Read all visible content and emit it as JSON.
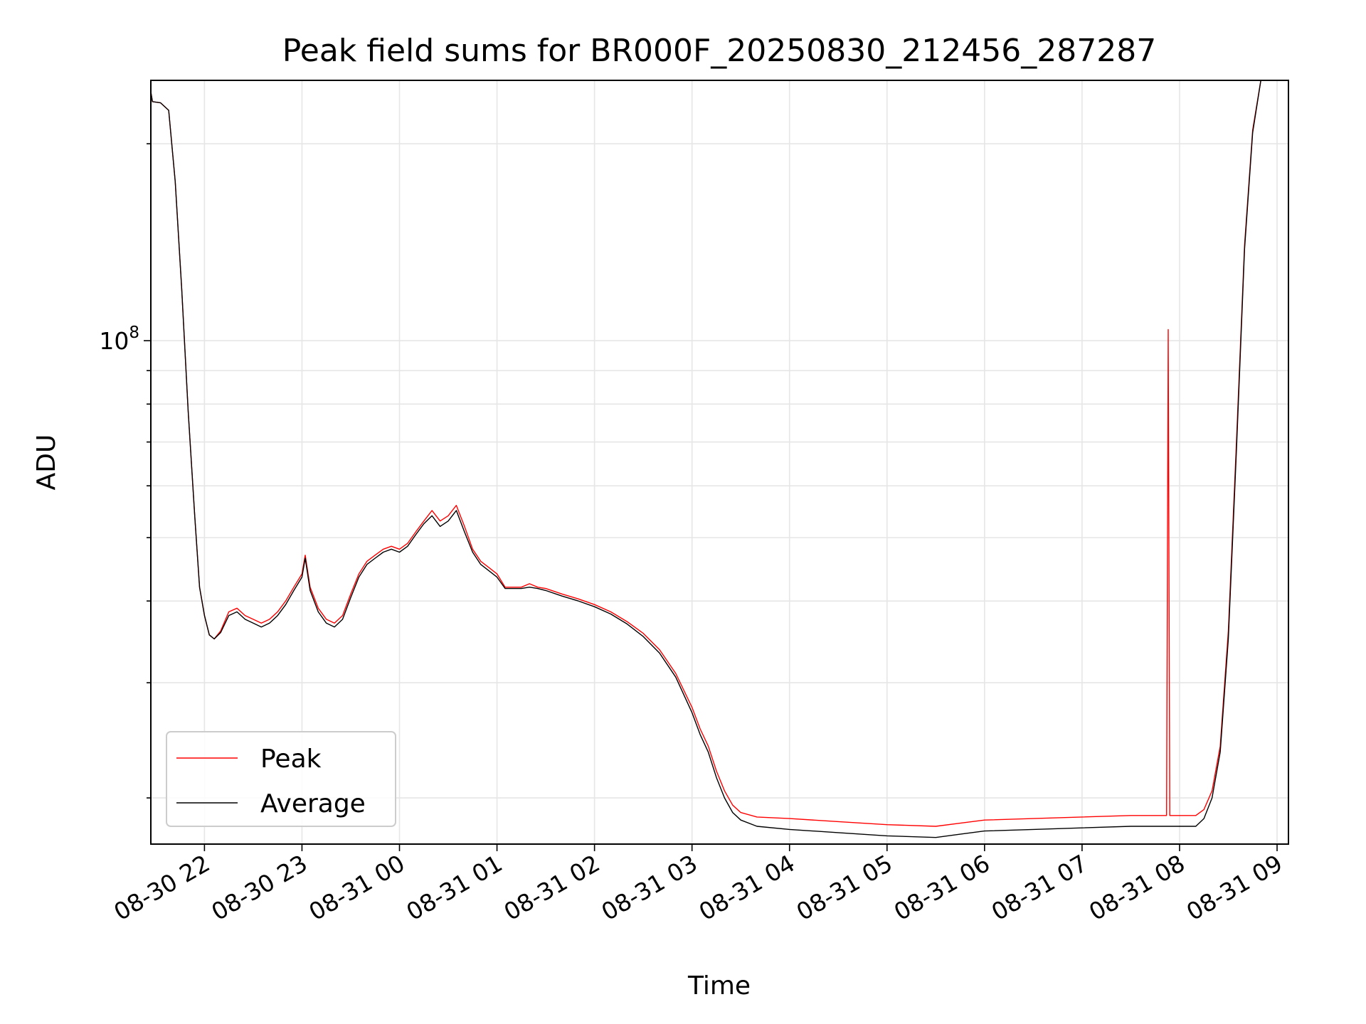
{
  "chart_data": {
    "type": "line",
    "title": "Peak field sums for BR000F_20250830_212456_287287",
    "xlabel": "Time",
    "ylabel": "ADU",
    "y_scale": "log",
    "y_tick": {
      "value": 100000000,
      "label_base": "10",
      "label_exp": "8"
    },
    "y_minor_ticks": [
      20000000,
      30000000,
      40000000,
      50000000,
      60000000,
      70000000,
      80000000,
      90000000,
      200000000
    ],
    "ylim": [
      17000000,
      250000000
    ],
    "xlim": [
      "2025-08-30 21:27",
      "2025-08-31 09:07"
    ],
    "x_ticks": [
      {
        "t": "2025-08-30 22:00",
        "label": "08-30 22"
      },
      {
        "t": "2025-08-30 23:00",
        "label": "08-30 23"
      },
      {
        "t": "2025-08-31 00:00",
        "label": "08-31 00"
      },
      {
        "t": "2025-08-31 01:00",
        "label": "08-31 01"
      },
      {
        "t": "2025-08-31 02:00",
        "label": "08-31 02"
      },
      {
        "t": "2025-08-31 03:00",
        "label": "08-31 03"
      },
      {
        "t": "2025-08-31 04:00",
        "label": "08-31 04"
      },
      {
        "t": "2025-08-31 05:00",
        "label": "08-31 05"
      },
      {
        "t": "2025-08-31 06:00",
        "label": "08-31 06"
      },
      {
        "t": "2025-08-31 07:00",
        "label": "08-31 07"
      },
      {
        "t": "2025-08-31 08:00",
        "label": "08-31 08"
      },
      {
        "t": "2025-08-31 09:00",
        "label": "08-31 09"
      }
    ],
    "grid": true,
    "legend": {
      "position": "lower-left",
      "entries": [
        "Peak",
        "Average"
      ]
    },
    "series": [
      {
        "name": "Peak",
        "color": "#ff0000",
        "points": [
          [
            "2025-08-30 21:27",
            240000000
          ],
          [
            "2025-08-30 21:28",
            232000000
          ],
          [
            "2025-08-30 21:33",
            231000000
          ],
          [
            "2025-08-30 21:38",
            225000000
          ],
          [
            "2025-08-30 21:42",
            175000000
          ],
          [
            "2025-08-30 21:46",
            120000000
          ],
          [
            "2025-08-30 21:50",
            78000000
          ],
          [
            "2025-08-30 21:54",
            54000000
          ],
          [
            "2025-08-30 21:57",
            42000000
          ],
          [
            "2025-08-30 22:00",
            38000000
          ],
          [
            "2025-08-30 22:03",
            35500000
          ],
          [
            "2025-08-30 22:06",
            35000000
          ],
          [
            "2025-08-30 22:10",
            36000000
          ],
          [
            "2025-08-30 22:15",
            38500000
          ],
          [
            "2025-08-30 22:20",
            39000000
          ],
          [
            "2025-08-30 22:25",
            38000000
          ],
          [
            "2025-08-30 22:30",
            37500000
          ],
          [
            "2025-08-30 22:35",
            37000000
          ],
          [
            "2025-08-30 22:40",
            37500000
          ],
          [
            "2025-08-30 22:45",
            38500000
          ],
          [
            "2025-08-30 22:50",
            40000000
          ],
          [
            "2025-08-30 22:55",
            42000000
          ],
          [
            "2025-08-30 23:00",
            44000000
          ],
          [
            "2025-08-30 23:02",
            47000000
          ],
          [
            "2025-08-30 23:05",
            42000000
          ],
          [
            "2025-08-30 23:10",
            39000000
          ],
          [
            "2025-08-30 23:15",
            37500000
          ],
          [
            "2025-08-30 23:20",
            37000000
          ],
          [
            "2025-08-30 23:25",
            38000000
          ],
          [
            "2025-08-30 23:30",
            41000000
          ],
          [
            "2025-08-30 23:35",
            44000000
          ],
          [
            "2025-08-30 23:40",
            46000000
          ],
          [
            "2025-08-30 23:45",
            47000000
          ],
          [
            "2025-08-30 23:50",
            48000000
          ],
          [
            "2025-08-30 23:55",
            48500000
          ],
          [
            "2025-08-31 00:00",
            48000000
          ],
          [
            "2025-08-31 00:05",
            49000000
          ],
          [
            "2025-08-31 00:10",
            51000000
          ],
          [
            "2025-08-31 00:15",
            53000000
          ],
          [
            "2025-08-31 00:20",
            55000000
          ],
          [
            "2025-08-31 00:25",
            53000000
          ],
          [
            "2025-08-31 00:30",
            54000000
          ],
          [
            "2025-08-31 00:35",
            56000000
          ],
          [
            "2025-08-31 00:40",
            52000000
          ],
          [
            "2025-08-31 00:45",
            48000000
          ],
          [
            "2025-08-31 00:50",
            46000000
          ],
          [
            "2025-08-31 00:55",
            45000000
          ],
          [
            "2025-08-31 01:00",
            44000000
          ],
          [
            "2025-08-31 01:05",
            42000000
          ],
          [
            "2025-08-31 01:10",
            42000000
          ],
          [
            "2025-08-31 01:15",
            42000000
          ],
          [
            "2025-08-31 01:20",
            42500000
          ],
          [
            "2025-08-31 01:25",
            42000000
          ],
          [
            "2025-08-31 01:30",
            41800000
          ],
          [
            "2025-08-31 01:40",
            41000000
          ],
          [
            "2025-08-31 01:50",
            40300000
          ],
          [
            "2025-08-31 02:00",
            39500000
          ],
          [
            "2025-08-31 02:10",
            38500000
          ],
          [
            "2025-08-31 02:20",
            37200000
          ],
          [
            "2025-08-31 02:30",
            35700000
          ],
          [
            "2025-08-31 02:40",
            33700000
          ],
          [
            "2025-08-31 02:50",
            31000000
          ],
          [
            "2025-08-31 03:00",
            27500000
          ],
          [
            "2025-08-31 03:05",
            25500000
          ],
          [
            "2025-08-31 03:10",
            24000000
          ],
          [
            "2025-08-31 03:15",
            22000000
          ],
          [
            "2025-08-31 03:20",
            20500000
          ],
          [
            "2025-08-31 03:25",
            19500000
          ],
          [
            "2025-08-31 03:30",
            19000000
          ],
          [
            "2025-08-31 03:40",
            18700000
          ],
          [
            "2025-08-31 04:00",
            18600000
          ],
          [
            "2025-08-31 04:30",
            18400000
          ],
          [
            "2025-08-31 05:00",
            18200000
          ],
          [
            "2025-08-31 05:30",
            18100000
          ],
          [
            "2025-08-31 05:45",
            18300000
          ],
          [
            "2025-08-31 06:00",
            18500000
          ],
          [
            "2025-08-31 06:30",
            18600000
          ],
          [
            "2025-08-31 07:00",
            18700000
          ],
          [
            "2025-08-31 07:30",
            18800000
          ],
          [
            "2025-08-31 07:52",
            18800000
          ],
          [
            "2025-08-31 07:53",
            104000000
          ],
          [
            "2025-08-31 07:54",
            18800000
          ],
          [
            "2025-08-31 08:10",
            18800000
          ],
          [
            "2025-08-31 08:15",
            19200000
          ],
          [
            "2025-08-31 08:20",
            20500000
          ],
          [
            "2025-08-31 08:25",
            24000000
          ],
          [
            "2025-08-31 08:30",
            36000000
          ],
          [
            "2025-08-31 08:35",
            70000000
          ],
          [
            "2025-08-31 08:40",
            140000000
          ],
          [
            "2025-08-31 08:45",
            210000000
          ],
          [
            "2025-08-31 08:50",
            250000000
          ]
        ]
      },
      {
        "name": "Average",
        "color": "#000000",
        "points": [
          [
            "2025-08-30 21:27",
            240000000
          ],
          [
            "2025-08-30 21:28",
            232000000
          ],
          [
            "2025-08-30 21:33",
            231000000
          ],
          [
            "2025-08-30 21:38",
            225000000
          ],
          [
            "2025-08-30 21:42",
            175000000
          ],
          [
            "2025-08-30 21:46",
            120000000
          ],
          [
            "2025-08-30 21:50",
            78000000
          ],
          [
            "2025-08-30 21:54",
            54000000
          ],
          [
            "2025-08-30 21:57",
            42000000
          ],
          [
            "2025-08-30 22:00",
            38000000
          ],
          [
            "2025-08-30 22:03",
            35500000
          ],
          [
            "2025-08-30 22:06",
            35000000
          ],
          [
            "2025-08-30 22:10",
            35800000
          ],
          [
            "2025-08-30 22:15",
            38000000
          ],
          [
            "2025-08-30 22:20",
            38500000
          ],
          [
            "2025-08-30 22:25",
            37500000
          ],
          [
            "2025-08-30 22:30",
            37000000
          ],
          [
            "2025-08-30 22:35",
            36500000
          ],
          [
            "2025-08-30 22:40",
            37000000
          ],
          [
            "2025-08-30 22:45",
            38000000
          ],
          [
            "2025-08-30 22:50",
            39500000
          ],
          [
            "2025-08-30 22:55",
            41500000
          ],
          [
            "2025-08-30 23:00",
            43500000
          ],
          [
            "2025-08-30 23:02",
            46500000
          ],
          [
            "2025-08-30 23:05",
            41500000
          ],
          [
            "2025-08-30 23:10",
            38500000
          ],
          [
            "2025-08-30 23:15",
            37000000
          ],
          [
            "2025-08-30 23:20",
            36500000
          ],
          [
            "2025-08-30 23:25",
            37500000
          ],
          [
            "2025-08-30 23:30",
            40500000
          ],
          [
            "2025-08-30 23:35",
            43500000
          ],
          [
            "2025-08-30 23:40",
            45500000
          ],
          [
            "2025-08-30 23:45",
            46500000
          ],
          [
            "2025-08-30 23:50",
            47500000
          ],
          [
            "2025-08-30 23:55",
            48000000
          ],
          [
            "2025-08-31 00:00",
            47500000
          ],
          [
            "2025-08-31 00:05",
            48500000
          ],
          [
            "2025-08-31 00:10",
            50500000
          ],
          [
            "2025-08-31 00:15",
            52500000
          ],
          [
            "2025-08-31 00:20",
            54000000
          ],
          [
            "2025-08-31 00:25",
            52000000
          ],
          [
            "2025-08-31 00:30",
            53000000
          ],
          [
            "2025-08-31 00:35",
            55000000
          ],
          [
            "2025-08-31 00:40",
            51000000
          ],
          [
            "2025-08-31 00:45",
            47500000
          ],
          [
            "2025-08-31 00:50",
            45500000
          ],
          [
            "2025-08-31 00:55",
            44500000
          ],
          [
            "2025-08-31 01:00",
            43500000
          ],
          [
            "2025-08-31 01:05",
            41800000
          ],
          [
            "2025-08-31 01:10",
            41800000
          ],
          [
            "2025-08-31 01:15",
            41800000
          ],
          [
            "2025-08-31 01:20",
            42000000
          ],
          [
            "2025-08-31 01:25",
            41800000
          ],
          [
            "2025-08-31 01:30",
            41500000
          ],
          [
            "2025-08-31 01:40",
            40700000
          ],
          [
            "2025-08-31 01:50",
            40000000
          ],
          [
            "2025-08-31 02:00",
            39200000
          ],
          [
            "2025-08-31 02:10",
            38200000
          ],
          [
            "2025-08-31 02:20",
            36900000
          ],
          [
            "2025-08-31 02:30",
            35300000
          ],
          [
            "2025-08-31 02:40",
            33300000
          ],
          [
            "2025-08-31 02:50",
            30600000
          ],
          [
            "2025-08-31 03:00",
            27000000
          ],
          [
            "2025-08-31 03:05",
            25000000
          ],
          [
            "2025-08-31 03:10",
            23500000
          ],
          [
            "2025-08-31 03:15",
            21500000
          ],
          [
            "2025-08-31 03:20",
            20000000
          ],
          [
            "2025-08-31 03:25",
            19000000
          ],
          [
            "2025-08-31 03:30",
            18500000
          ],
          [
            "2025-08-31 03:40",
            18100000
          ],
          [
            "2025-08-31 04:00",
            17900000
          ],
          [
            "2025-08-31 04:30",
            17700000
          ],
          [
            "2025-08-31 05:00",
            17500000
          ],
          [
            "2025-08-31 05:30",
            17400000
          ],
          [
            "2025-08-31 05:45",
            17600000
          ],
          [
            "2025-08-31 06:00",
            17800000
          ],
          [
            "2025-08-31 06:30",
            17900000
          ],
          [
            "2025-08-31 07:00",
            18000000
          ],
          [
            "2025-08-31 07:30",
            18100000
          ],
          [
            "2025-08-31 07:52",
            18100000
          ],
          [
            "2025-08-31 07:54",
            18100000
          ],
          [
            "2025-08-31 08:10",
            18100000
          ],
          [
            "2025-08-31 08:15",
            18600000
          ],
          [
            "2025-08-31 08:20",
            20000000
          ],
          [
            "2025-08-31 08:25",
            23500000
          ],
          [
            "2025-08-31 08:30",
            35000000
          ],
          [
            "2025-08-31 08:35",
            68000000
          ],
          [
            "2025-08-31 08:40",
            138000000
          ],
          [
            "2025-08-31 08:45",
            208000000
          ],
          [
            "2025-08-31 08:50",
            250000000
          ]
        ]
      }
    ]
  }
}
